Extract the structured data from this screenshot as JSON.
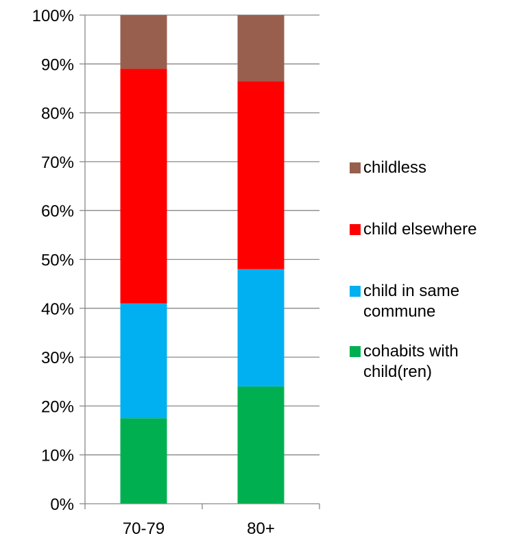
{
  "chart_data": {
    "type": "bar",
    "stacked": true,
    "percent": true,
    "categories": [
      "70-79",
      "80+"
    ],
    "series": [
      {
        "name": "cohabits with child(ren)",
        "color": "#00b050",
        "values": [
          17.5,
          24
        ]
      },
      {
        "name": "child in same commune",
        "color": "#00b0f0",
        "values": [
          23.5,
          24
        ]
      },
      {
        "name": "child elsewhere",
        "color": "#ff0000",
        "values": [
          48,
          38.5
        ]
      },
      {
        "name": "childless",
        "color": "#985f4f",
        "values": [
          11,
          13.5
        ]
      }
    ],
    "ylim": [
      0,
      100
    ],
    "y_ticks": [
      "0%",
      "10%",
      "20%",
      "30%",
      "40%",
      "50%",
      "60%",
      "70%",
      "80%",
      "90%",
      "100%"
    ],
    "grid": true,
    "legend_position": "right",
    "legend": [
      {
        "label": "childless",
        "color": "#985f4f"
      },
      {
        "label": "child elsewhere",
        "color": "#ff0000"
      },
      {
        "label": "child in same\ncommune",
        "color": "#00b0f0"
      },
      {
        "label": "cohabits with\nchild(ren)",
        "color": "#00b050"
      }
    ],
    "title": "",
    "xlabel": "",
    "ylabel": ""
  }
}
